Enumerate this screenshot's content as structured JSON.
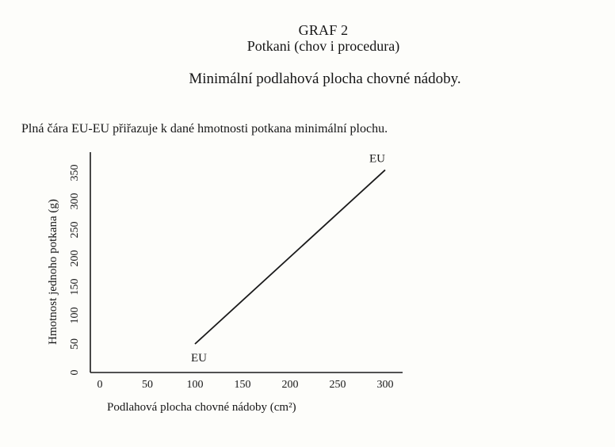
{
  "header": {
    "title": "GRAF 2",
    "subtitle": "Potkani (chov i procedura)",
    "heading2": "Minimální podlahová plocha chovné nádoby."
  },
  "caption": "Plná čára EU-EU přiřazuje k dané hmotnosti potkana minimální plochu.",
  "chart_data": {
    "type": "line",
    "title": "Minimální podlahová plocha chovné nádoby.",
    "xlabel": "Podlahová plocha chovné nádoby (cm²)",
    "ylabel": "Hmotnost jednoho potkana (g)",
    "xlim": [
      0,
      318
    ],
    "ylim": [
      0,
      385
    ],
    "xticks": [
      0,
      50,
      100,
      150,
      200,
      250,
      300
    ],
    "yticks": [
      0,
      50,
      100,
      150,
      200,
      250,
      300,
      350
    ],
    "grid": false,
    "legend_position": "none",
    "series": [
      {
        "name": "EU",
        "color": "#1a1a1a",
        "start_label": "EU",
        "end_label": "EU",
        "points": [
          [
            100,
            50
          ],
          [
            300,
            355
          ]
        ]
      }
    ]
  }
}
